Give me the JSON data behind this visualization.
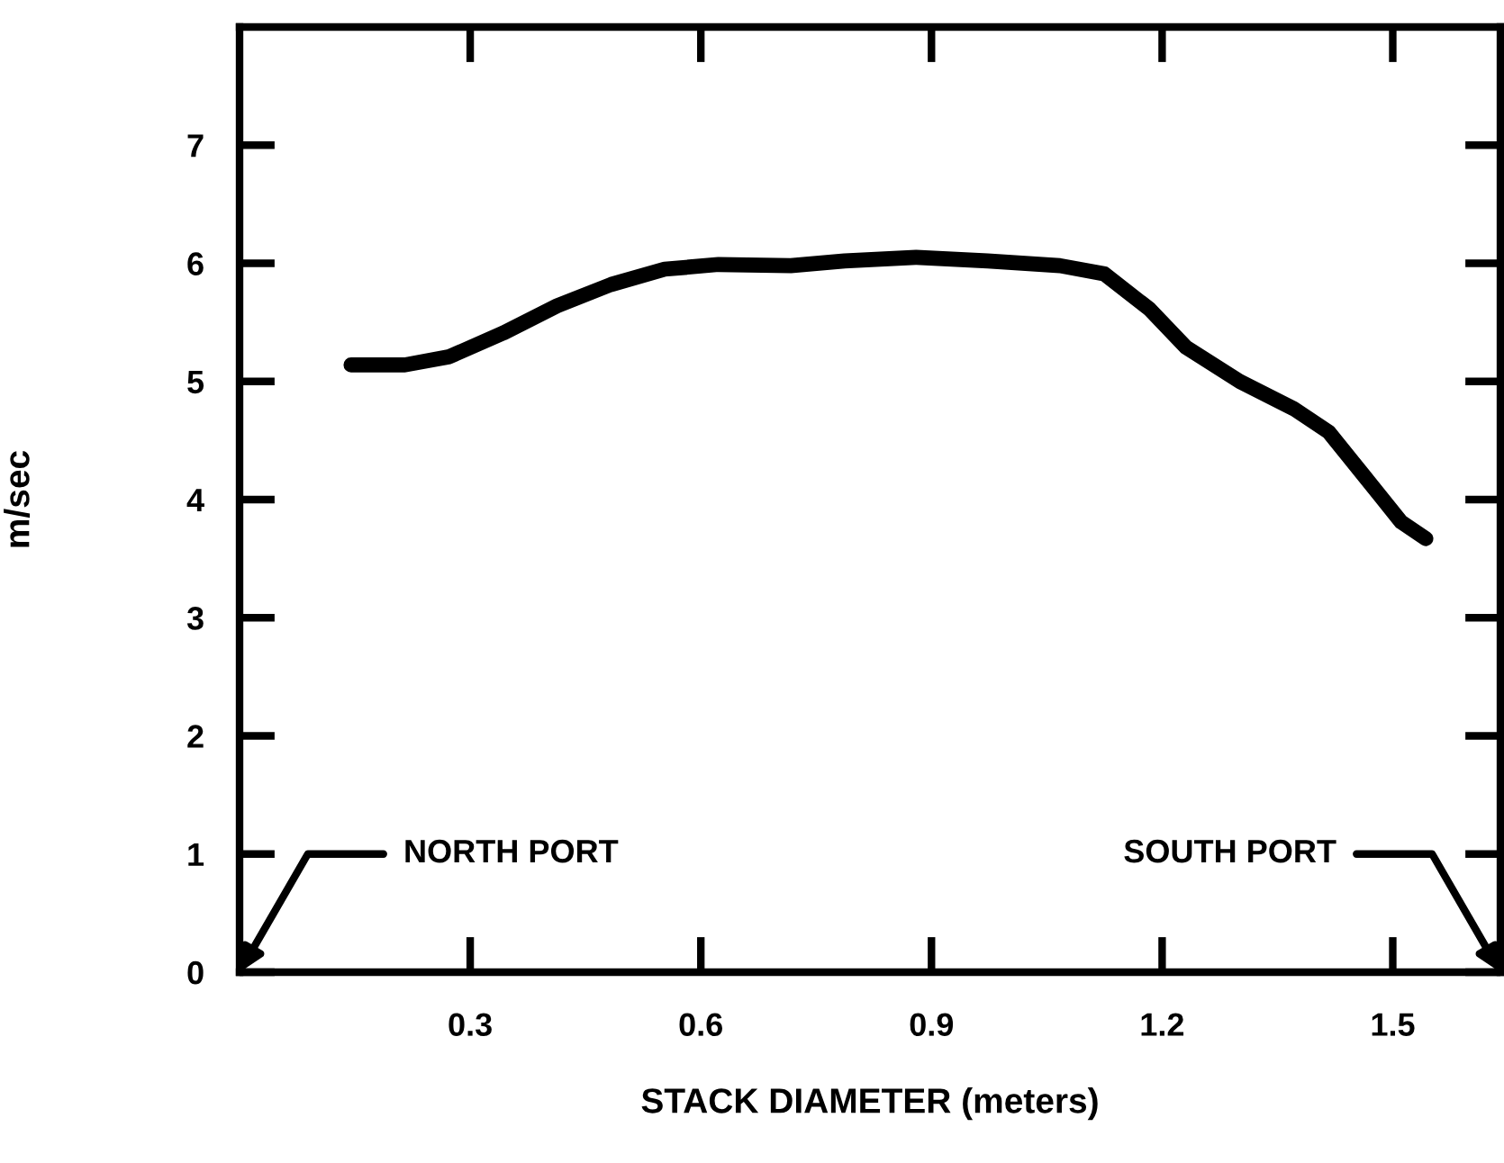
{
  "chart_data": {
    "type": "line",
    "xlabel": "STACK DIAMETER (meters)",
    "ylabel": "m/sec",
    "x": [
      0.145,
      0.215,
      0.273,
      0.343,
      0.413,
      0.483,
      0.553,
      0.623,
      0.717,
      0.787,
      0.88,
      0.973,
      1.067,
      1.125,
      1.184,
      1.231,
      1.301,
      1.371,
      1.417,
      1.464,
      1.511,
      1.543
    ],
    "series": [
      {
        "color": "#000000",
        "values": [
          5.14,
          5.14,
          5.21,
          5.41,
          5.64,
          5.82,
          5.95,
          5.99,
          5.98,
          6.02,
          6.05,
          6.02,
          5.98,
          5.91,
          5.61,
          5.29,
          5.0,
          4.77,
          4.57,
          4.19,
          3.81,
          3.67
        ]
      }
    ],
    "xlim": [
      0,
      1.64
    ],
    "ylim": [
      0,
      8
    ],
    "xticks": [
      0.3,
      0.6,
      0.9,
      1.2,
      1.5
    ],
    "yticks": [
      0,
      1,
      2,
      3,
      4,
      5,
      6,
      7
    ],
    "grid": false,
    "legend": false,
    "marker": "none",
    "line_style": "solid",
    "annotations": [
      "NORTH PORT",
      "SOUTH PORT"
    ]
  }
}
